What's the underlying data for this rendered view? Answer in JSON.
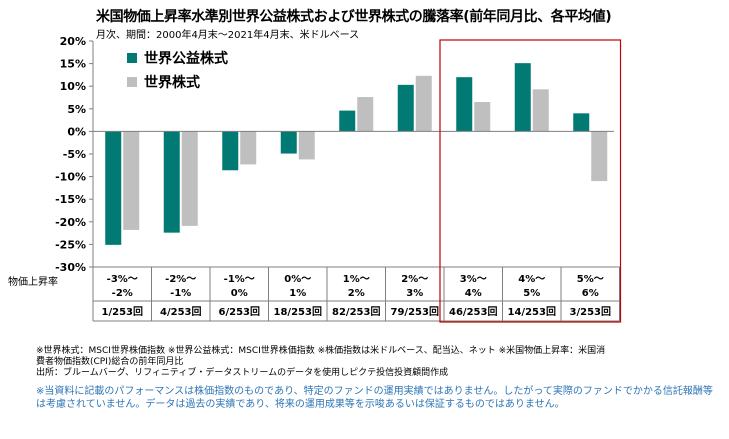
{
  "title": "米国物価上昇率水準別世界公益株式および世界株式の騰落率(前年同月比、各平均値)",
  "subtitle": "月次、期間：2000年4月末～2021年4月末、米ドルベース",
  "colors": {
    "series1": "#007a73",
    "series2": "#bfbfbf",
    "highlight": "#c00000",
    "axis": "#7f7f7f"
  },
  "chart_data": {
    "type": "bar",
    "ylim": [
      -30,
      20
    ],
    "yticks": [
      "20%",
      "15%",
      "10%",
      "5%",
      "0%",
      "-5%",
      "-10%",
      "-15%",
      "-20%",
      "-25%",
      "-30%"
    ],
    "ytick_values": [
      20,
      15,
      10,
      5,
      0,
      -5,
      -10,
      -15,
      -20,
      -25,
      -30
    ],
    "row_label": "物価上昇率",
    "categories": [
      {
        "top": "-3%～",
        "bottom": "-2%",
        "count": "1/253回"
      },
      {
        "top": "-2%～",
        "bottom": "-1%",
        "count": "4/253回"
      },
      {
        "top": "-1%～",
        "bottom": "0%",
        "count": "6/253回"
      },
      {
        "top": "0%～",
        "bottom": "1%",
        "count": "18/253回"
      },
      {
        "top": "1%～",
        "bottom": "2%",
        "count": "82/253回"
      },
      {
        "top": "2%～",
        "bottom": "3%",
        "count": "79/253回"
      },
      {
        "top": "3%～",
        "bottom": "4%",
        "count": "46/253回"
      },
      {
        "top": "4%～",
        "bottom": "5%",
        "count": "14/253回"
      },
      {
        "top": "5%～",
        "bottom": "6%",
        "count": "3/253回"
      }
    ],
    "series": [
      {
        "name": "世界公益株式",
        "values": [
          -25.1,
          -22.4,
          -8.6,
          -4.9,
          4.6,
          10.3,
          12.0,
          15.1,
          4.0
        ]
      },
      {
        "name": "世界株式",
        "values": [
          -21.8,
          -20.9,
          -7.3,
          -6.2,
          7.6,
          12.3,
          6.5,
          9.3,
          -11.0
        ]
      }
    ],
    "highlight_categories": [
      6,
      7,
      8
    ],
    "legend_position": "top-left",
    "grid": false
  },
  "notes": {
    "line1": "※世界株式：MSCI世界株価指数 ※世界公益株式：MSCI世界株価指数 ※株価指数は米ドルベース、配当込、ネット ※米国物価上昇率：米国消",
    "line2": "費者物価指数(CPI)総合の前年同月比",
    "source": "出所：ブルームバーグ、リフィニティブ・データストリームのデータを使用しピクテ投信投資顧問作成"
  },
  "disclaimer": "※当資料に記載のパフォーマンスは株価指数のものであり、特定のファンドの運用実績ではありません。したがって実際のファンドでかかる信託報酬等は考慮されていません。データは過去の実績であり、将来の運用成果等を示唆あるいは保証するものではありません。"
}
